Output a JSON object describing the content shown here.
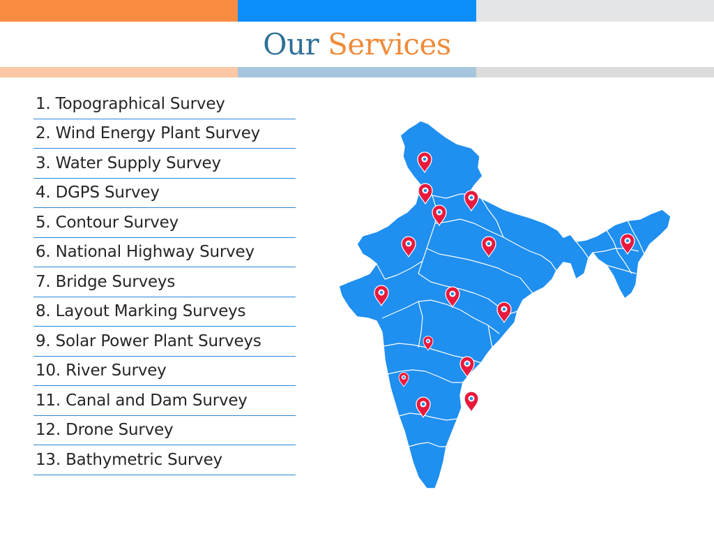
{
  "colors": {
    "accent_orange": "#fa8c40",
    "accent_blue": "#0b8ef7",
    "accent_grey": "#e4e5e6",
    "pale_orange": "#fbc8a5",
    "pale_blue": "#a7c6dd",
    "pale_grey": "#dcdcdc",
    "title_blue": "#2e6f97",
    "title_orange": "#ef8b3a",
    "map_fill": "#1f8ff0",
    "marker": "#e8193c",
    "divider": "#2a86d4"
  },
  "header": {
    "title_word1": "Our",
    "title_word2": "Services"
  },
  "services": [
    "1. Topographical Survey",
    "2. Wind Energy Plant Survey",
    "3. Water Supply Survey",
    "4. DGPS Survey",
    "5. Contour Survey",
    "6. National Highway Survey",
    "7. Bridge Surveys",
    "8. Layout Marking Surveys",
    "9. Solar Power Plant Surveys",
    "10. River Survey",
    "11. Canal and Dam Survey",
    "12. Drone Survey",
    "13. Bathymetric Survey"
  ],
  "map": {
    "icon": "india-map-icon",
    "marker_icon": "location-pin-icon",
    "marker_count": 15
  }
}
